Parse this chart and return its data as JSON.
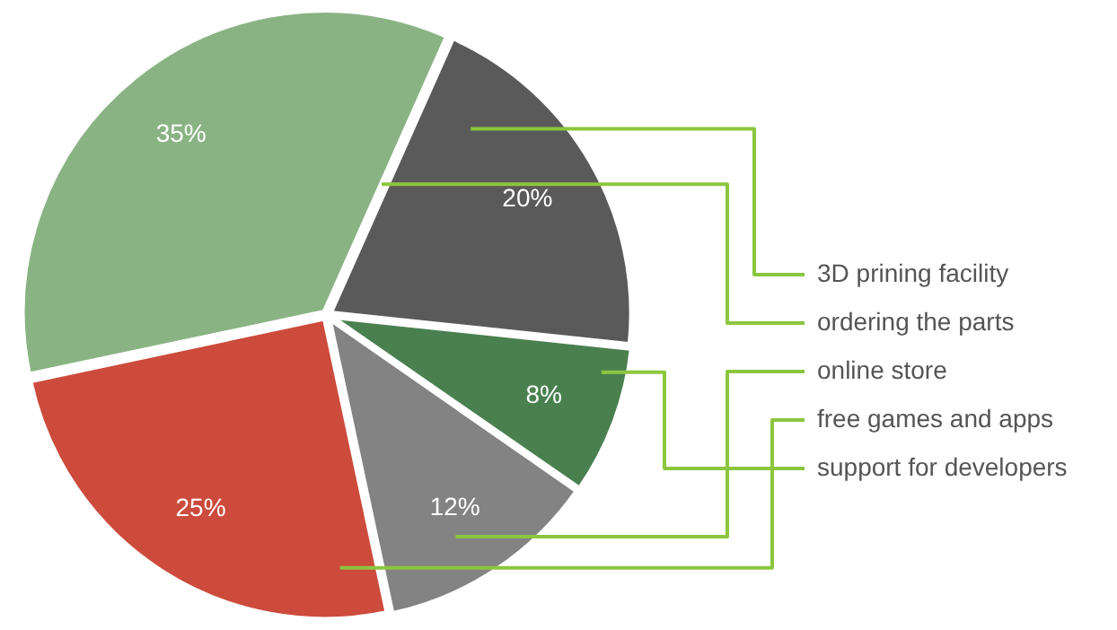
{
  "chart_data": {
    "type": "pie",
    "categories": [
      "3D prining facility",
      "support for developers",
      "online store",
      "free games and apps",
      "ordering the parts"
    ],
    "values": [
      20,
      8,
      12,
      25,
      35
    ],
    "value_labels": [
      "20%",
      "8%",
      "12%",
      "25%",
      "35%"
    ],
    "colors": [
      "#5a5a5a",
      "#4a8050",
      "#838383",
      "#cc4b3c",
      "#8ab384"
    ],
    "legend": false
  }
}
